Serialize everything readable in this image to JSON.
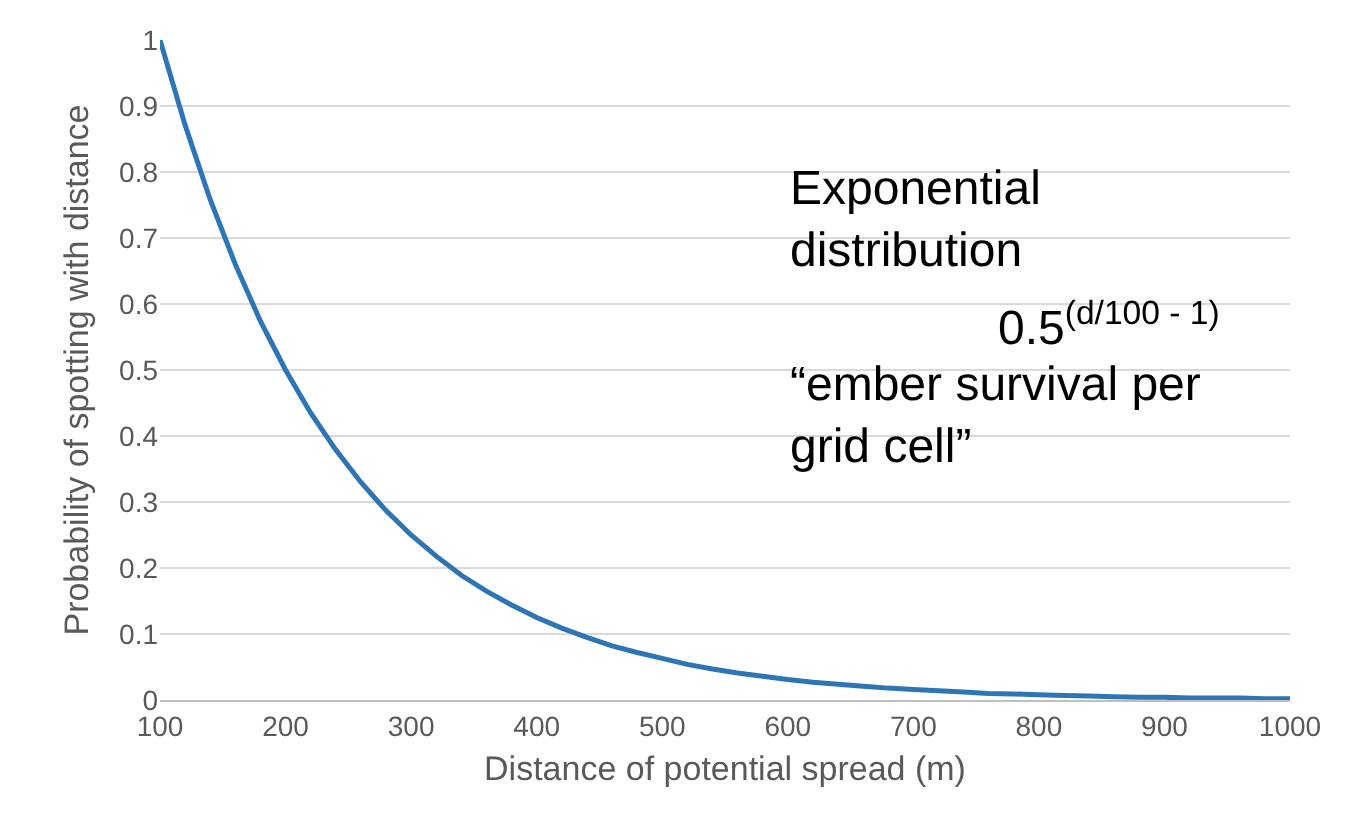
{
  "chart_data": {
    "type": "line",
    "xlabel": "Distance of potential spread (m)",
    "ylabel": "Probability of spotting with distance",
    "x": [
      100,
      120,
      140,
      160,
      180,
      200,
      220,
      240,
      260,
      280,
      300,
      320,
      340,
      360,
      380,
      400,
      420,
      440,
      460,
      480,
      500,
      520,
      540,
      560,
      580,
      600,
      620,
      640,
      660,
      680,
      700,
      720,
      740,
      760,
      780,
      800,
      820,
      840,
      860,
      880,
      900,
      920,
      940,
      960,
      980,
      1000
    ],
    "series": [
      {
        "color": "#2e75b6",
        "values": [
          1,
          0.871,
          0.758,
          0.66,
          0.574,
          0.5,
          0.435,
          0.379,
          0.33,
          0.287,
          0.25,
          0.218,
          0.189,
          0.165,
          0.144,
          0.125,
          0.109,
          0.095,
          0.082,
          0.072,
          0.063,
          0.054,
          0.047,
          0.041,
          0.036,
          0.031,
          0.027,
          0.024,
          0.021,
          0.018,
          0.016,
          0.014,
          0.012,
          0.01,
          0.009,
          0.008,
          0.007,
          0.006,
          0.005,
          0.004,
          0.004,
          0.003,
          0.003,
          0.003,
          0.002,
          0.002
        ]
      }
    ],
    "xlim": [
      100,
      1000
    ],
    "xticks": [
      100,
      200,
      300,
      400,
      500,
      600,
      700,
      800,
      900,
      1000
    ],
    "ylim": [
      0,
      1
    ],
    "yticks": [
      0,
      0.1,
      0.2,
      0.3,
      0.4,
      0.5,
      0.6,
      0.7,
      0.8,
      0.9,
      1
    ],
    "grid": "y",
    "marker": "none",
    "line_style": "solid",
    "annotations": [
      "Exponential\ndistribution",
      "0.5$^{(d/100 - 1)}$",
      "“ember survival per\ngrid cell”"
    ]
  }
}
